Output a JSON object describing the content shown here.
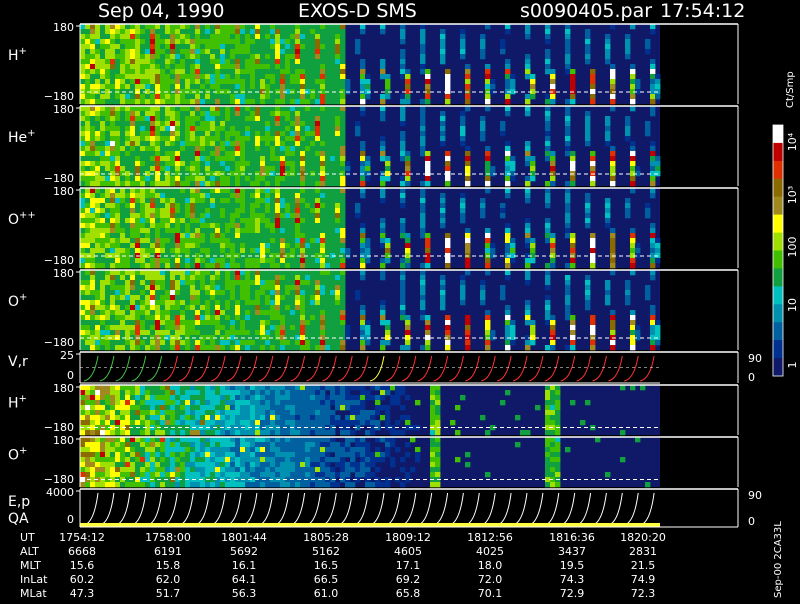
{
  "header": {
    "date": "Sep 04, 1990",
    "instrument": "EXOS-D SMS",
    "file": "s0090405.par",
    "time": "17:54:12"
  },
  "colorbar": {
    "unit": "Ct/Smp",
    "tick_labels": [
      "10⁴",
      "10³",
      "100",
      "10",
      "1"
    ],
    "colors": [
      "#ffffff",
      "#c00000",
      "#e03000",
      "#8b6b00",
      "#a08a20",
      "#ffff00",
      "#a0e000",
      "#40c000",
      "#10a040",
      "#00c0c0",
      "#0090b0",
      "#0060a0",
      "#003090",
      "#101868"
    ]
  },
  "footer_id": "Sep-00 2CA33L",
  "table": {
    "rows": [
      {
        "label": "UT",
        "values": [
          "1754:12",
          "1758:00",
          "1801:44",
          "1805:28",
          "1809:12",
          "1812:56",
          "1816:36",
          "1820:20"
        ]
      },
      {
        "label": "ALT",
        "values": [
          "6668",
          "6191",
          "5692",
          "5162",
          "4605",
          "4025",
          "3437",
          "2831"
        ]
      },
      {
        "label": "MLT",
        "values": [
          "15.6",
          "15.8",
          "16.1",
          "16.5",
          "17.1",
          "18.0",
          "19.5",
          "21.5"
        ]
      },
      {
        "label": "InLat",
        "values": [
          "60.2",
          "62.0",
          "64.1",
          "66.5",
          "69.2",
          "72.0",
          "74.3",
          "74.9"
        ]
      },
      {
        "label": "MLat",
        "values": [
          "47.3",
          "51.7",
          "56.3",
          "61.0",
          "65.8",
          "70.1",
          "72.9",
          "72.3"
        ]
      }
    ]
  },
  "chart_data": [
    {
      "type": "heatmap",
      "panel": "p-hplus",
      "label": "H",
      "sup": "+",
      "ytick_top": "180",
      "ytick_bottom": "−180",
      "ylim": [
        -180,
        180
      ],
      "pattern": "periodic",
      "periods": 28
    },
    {
      "type": "heatmap",
      "panel": "p-heplus",
      "label": "He",
      "sup": "+",
      "ytick_top": "180",
      "ytick_bottom": "−180",
      "ylim": [
        -180,
        180
      ],
      "pattern": "periodic",
      "periods": 28
    },
    {
      "type": "heatmap",
      "panel": "p-oppp",
      "label": "O",
      "sup": "++",
      "ytick_top": "180",
      "ytick_bottom": "−180",
      "ylim": [
        -180,
        180
      ],
      "pattern": "periodic",
      "periods": 28
    },
    {
      "type": "heatmap",
      "panel": "p-oplus",
      "label": "O",
      "sup": "+",
      "ytick_top": "180",
      "ytick_bottom": "−180",
      "ylim": [
        -180,
        180
      ],
      "pattern": "periodic",
      "periods": 28
    },
    {
      "type": "line",
      "panel": "p-vr",
      "label": "V,r",
      "ytick_top": "25",
      "ytick_bottom": "0",
      "right_top": "90",
      "right_bottom": "0"
    },
    {
      "type": "heatmap",
      "panel": "p-hplus2",
      "label": "H",
      "sup": "+",
      "ytick_top": "180",
      "ytick_bottom": "−180",
      "ylim": [
        -180,
        180
      ],
      "pattern": "diffuse"
    },
    {
      "type": "heatmap",
      "panel": "p-oplus2",
      "label": "O",
      "sup": "+",
      "ytick_top": "180",
      "ytick_bottom": "−180",
      "ylim": [
        -180,
        180
      ],
      "pattern": "diffuse"
    },
    {
      "type": "line",
      "panel": "p-ep",
      "label": "E,p",
      "label2": "QA",
      "ytick_top": "4000",
      "ytick_bottom": "0",
      "right_top": "90",
      "right_bottom": "0"
    }
  ]
}
